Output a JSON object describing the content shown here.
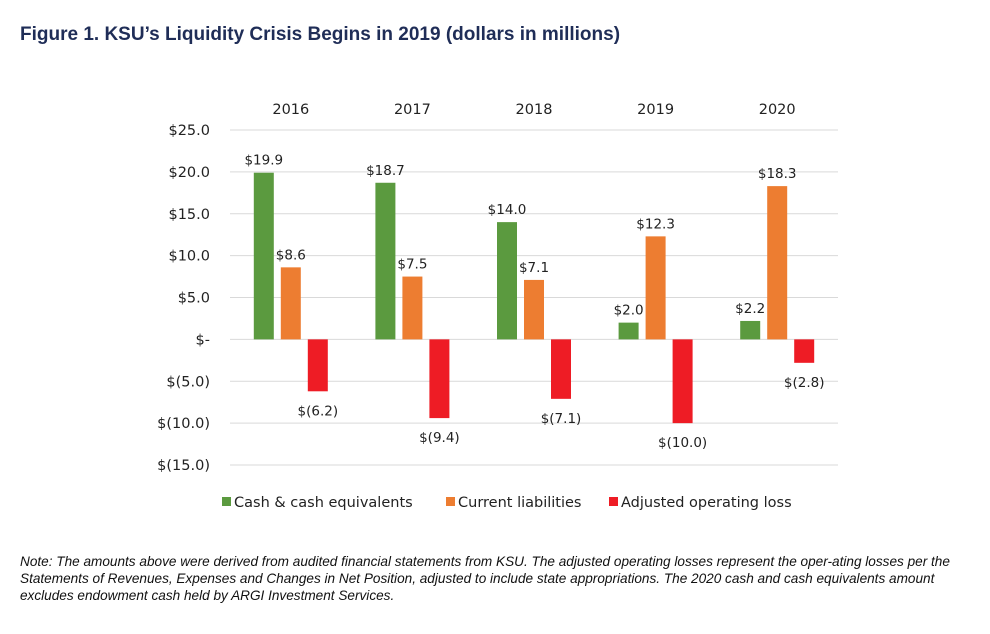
{
  "title": "Figure 1. KSU’s Liquidity Crisis Begins in 2019 (dollars in millions)",
  "note": "Note: The amounts above were derived from audited financial statements from KSU. The adjusted operating losses represent the oper-ating losses per the Statements of Revenues, Expenses and Changes in Net Position, adjusted to include state appropriations. The 2020 cash and cash equivalents amount excludes endowment cash held by ARGI Investment Services.",
  "chart_data": {
    "type": "bar",
    "title": "Figure 1. KSU’s Liquidity Crisis Begins in 2019 (dollars in millions)",
    "categories": [
      "2016",
      "2017",
      "2018",
      "2019",
      "2020"
    ],
    "series": [
      {
        "name": "Cash & cash equivalents",
        "color": "#5b9a3f",
        "values": [
          19.9,
          18.7,
          14.0,
          2.0,
          2.2
        ],
        "labels": [
          "$19.9",
          "$18.7",
          "$14.0",
          "$2.0",
          "$2.2"
        ]
      },
      {
        "name": "Current liabilities",
        "color": "#ed7d31",
        "values": [
          8.6,
          7.5,
          7.1,
          12.3,
          18.3
        ],
        "labels": [
          "$8.6",
          "$7.5",
          "$7.1",
          "$12.3",
          "$18.3"
        ]
      },
      {
        "name": "Adjusted operating loss",
        "color": "#ee1c25",
        "values": [
          -6.2,
          -9.4,
          -7.1,
          -10.0,
          -2.8
        ],
        "labels": [
          "$(6.2)",
          "$(9.4)",
          "$(7.1)",
          "$(10.0)",
          "$(2.8)"
        ]
      }
    ],
    "y_ticks": [
      25,
      20,
      15,
      10,
      5,
      0,
      -5,
      -10,
      -15
    ],
    "y_tick_labels": [
      "$25.0",
      "$20.0",
      "$15.0",
      "$10.0",
      "$5.0",
      "$-",
      "$(5.0)",
      "$(10.0)",
      "$(15.0)"
    ],
    "ylim": [
      -15,
      25
    ],
    "category_axis_position": "top",
    "legend_position": "bottom",
    "grid": true
  }
}
